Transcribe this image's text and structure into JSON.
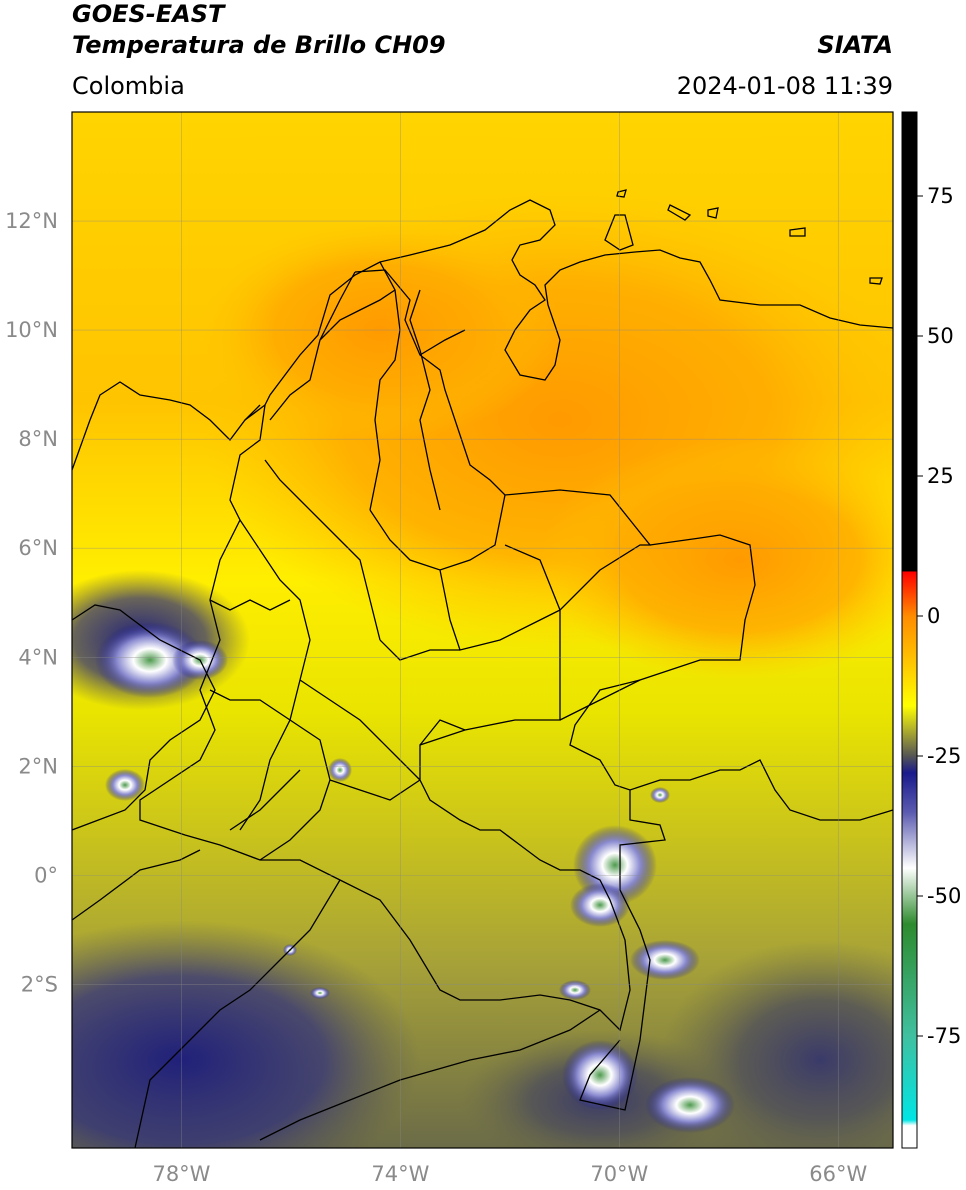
{
  "header": {
    "satellite": "GOES-EAST",
    "product": "Temperatura de Brillo CH09",
    "region": "Colombia",
    "source": "SIATA",
    "datetime": "2024-01-08 11:39"
  },
  "map": {
    "lon_range": [
      -80,
      -65
    ],
    "lat_range": [
      -5,
      14
    ],
    "lat_ticks": [
      {
        "value": 12,
        "label": "12°N"
      },
      {
        "value": 10,
        "label": "10°N"
      },
      {
        "value": 8,
        "label": "8°N"
      },
      {
        "value": 6,
        "label": "6°N"
      },
      {
        "value": 4,
        "label": "4°N"
      },
      {
        "value": 2,
        "label": "2°N"
      },
      {
        "value": 0,
        "label": "0°"
      },
      {
        "value": -2,
        "label": "2°S"
      }
    ],
    "lon_ticks": [
      {
        "value": -78,
        "label": "78°W"
      },
      {
        "value": -74,
        "label": "74°W"
      },
      {
        "value": -70,
        "label": "70°W"
      },
      {
        "value": -66,
        "label": "66°W"
      }
    ],
    "grid": true
  },
  "colorbar": {
    "range": [
      -95,
      90
    ],
    "ticks": [
      {
        "value": 75,
        "label": "75"
      },
      {
        "value": 50,
        "label": "50"
      },
      {
        "value": 25,
        "label": "25"
      },
      {
        "value": 0,
        "label": "0"
      },
      {
        "value": -25,
        "label": "-25"
      },
      {
        "value": -50,
        "label": "-50"
      },
      {
        "value": -75,
        "label": "-75"
      }
    ],
    "stops": [
      {
        "value": 90,
        "color": "#000000"
      },
      {
        "value": 8,
        "color": "#000000"
      },
      {
        "value": 7.9,
        "color": "#ff0000"
      },
      {
        "value": 0,
        "color": "#ff8c00"
      },
      {
        "value": -10,
        "color": "#ffd200"
      },
      {
        "value": -16,
        "color": "#ffff00"
      },
      {
        "value": -20,
        "color": "#b5b52a"
      },
      {
        "value": -25,
        "color": "#555555"
      },
      {
        "value": -28,
        "color": "#1a1a8c"
      },
      {
        "value": -35,
        "color": "#5a5ab0"
      },
      {
        "value": -45,
        "color": "#ffffff"
      },
      {
        "value": -55,
        "color": "#2e8b2e"
      },
      {
        "value": -75,
        "color": "#40c0a0"
      },
      {
        "value": -90,
        "color": "#00e5e5"
      },
      {
        "value": -91,
        "color": "#ffffff"
      },
      {
        "value": -95,
        "color": "#ffffff"
      }
    ]
  }
}
